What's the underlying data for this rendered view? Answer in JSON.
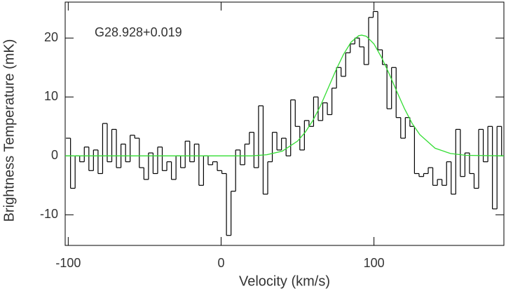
{
  "chart_data": {
    "type": "step",
    "annotation": "G28.928+0.019",
    "xlabel": "Velocity (km/s)",
    "ylabel": "Brightness Temperature (mK)",
    "xlim": [
      -102,
      185
    ],
    "ylim": [
      -15.2,
      26.1
    ],
    "xticks": [
      -100,
      0,
      100
    ],
    "yticks": [
      -10,
      0,
      10,
      20
    ],
    "color": "#000000",
    "x": [
      -100,
      -97,
      -94,
      -91,
      -88,
      -85,
      -82,
      -79,
      -76,
      -73,
      -70,
      -67,
      -64,
      -61,
      -58,
      -55,
      -52,
      -49,
      -46,
      -43,
      -40,
      -37,
      -34,
      -31,
      -28,
      -25,
      -22,
      -19,
      -16,
      -13,
      -10,
      -7,
      -4,
      -1,
      2,
      5,
      8,
      11,
      14,
      17,
      20,
      23,
      26,
      29,
      32,
      35,
      38,
      41,
      44,
      47,
      50,
      53,
      56,
      59,
      62,
      65,
      68,
      71,
      74,
      77,
      80,
      83,
      86,
      89,
      92,
      95,
      98,
      101,
      104,
      107,
      110,
      113,
      116,
      119,
      122,
      125,
      128,
      131,
      134,
      137,
      140,
      143,
      146,
      149,
      152,
      155,
      158,
      161,
      164,
      167,
      170,
      173,
      176,
      179,
      182,
      185
    ],
    "values": [
      3,
      -5.5,
      0,
      -1,
      1.5,
      -2.5,
      1,
      -3,
      5.5,
      -1,
      4.5,
      -2,
      2,
      -1,
      3.5,
      3,
      -2,
      -4,
      0.5,
      -3,
      1.5,
      -2.5,
      -1,
      -4,
      0,
      -2,
      2.5,
      -1,
      2,
      -5,
      0,
      -1.5,
      -1,
      -2.5,
      -3,
      -13.5,
      -6,
      1,
      -1.5,
      2,
      4,
      -2,
      8.5,
      -6.5,
      -1,
      4,
      1,
      3,
      0,
      9.5,
      5,
      1,
      6,
      5,
      10,
      6,
      9,
      7,
      11.5,
      15,
      13.5,
      17.5,
      19,
      20,
      18.5,
      15.5,
      23.5,
      24.5,
      18,
      15.5,
      8,
      15,
      6.5,
      3,
      6.5,
      5,
      -3,
      -3.5,
      -3,
      -2,
      -5,
      -4,
      -5,
      -1,
      -6.5,
      4.5,
      -3.5,
      0.5,
      -3,
      -5.5,
      4.5,
      -1,
      5,
      -9,
      5,
      0
    ],
    "fit": {
      "color": "#33dd33",
      "x": [
        -102,
        20,
        30,
        40,
        50,
        55,
        60,
        65,
        70,
        75,
        80,
        85,
        90,
        92,
        95,
        100,
        105,
        110,
        115,
        120,
        125,
        130,
        140,
        150,
        160,
        185
      ],
      "values": [
        0,
        0,
        0.2,
        0.8,
        2.5,
        4.0,
        6.0,
        8.5,
        11.5,
        14.5,
        17.2,
        19.3,
        20.4,
        20.5,
        20.3,
        19.0,
        16.7,
        13.9,
        10.9,
        8.0,
        5.5,
        3.6,
        1.3,
        0.4,
        0.1,
        0
      ]
    }
  }
}
